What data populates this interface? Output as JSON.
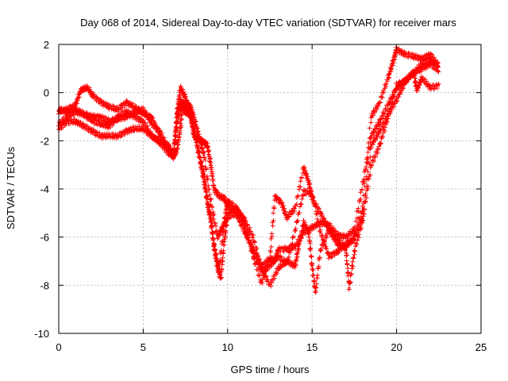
{
  "chart_data": {
    "type": "scatter",
    "title": "Day 068 of 2014, Sidereal Day-to-day VTEC variation (SDTVAR) for receiver mars",
    "xlabel": "GPS time / hours",
    "ylabel": "SDTVAR / TECUs",
    "xlim": [
      0,
      25
    ],
    "ylim": [
      -10,
      2
    ],
    "xticks": [
      0,
      5,
      10,
      15,
      20,
      25
    ],
    "yticks": [
      -10,
      -8,
      -6,
      -4,
      -2,
      0,
      2
    ],
    "xtick_labels": [
      "0",
      "5",
      "10",
      "15",
      "20",
      "25"
    ],
    "ytick_labels": [
      "-10",
      "-8",
      "-6",
      "-4",
      "-2",
      "0",
      "2"
    ],
    "grid": true,
    "legend": "none",
    "marker": "plus",
    "series_color": "#ff0000",
    "series": [
      {
        "points": [
          [
            0,
            -1.5
          ],
          [
            0.5,
            -1.2
          ],
          [
            1,
            -1.2
          ],
          [
            1.5,
            -1.4
          ],
          [
            2,
            -1.6
          ],
          [
            2.5,
            -1.8
          ],
          [
            3,
            -1.8
          ],
          [
            3.5,
            -1.8
          ],
          [
            4,
            -1.6
          ],
          [
            4.5,
            -1.5
          ],
          [
            5,
            -1.5
          ],
          [
            5.5,
            -1.8
          ],
          [
            6,
            -2.0
          ],
          [
            6.5,
            -2.2
          ],
          [
            6.8,
            -2.6
          ],
          [
            7.0,
            -2.4
          ],
          [
            7.2,
            -1.5
          ],
          [
            7.3,
            -0.6
          ],
          [
            7.5,
            -0.8
          ],
          [
            7.8,
            -0.9
          ],
          [
            8.0,
            -1.8
          ],
          [
            8.2,
            -1.9
          ],
          [
            8.5,
            -2.0
          ],
          [
            8.8,
            -2.2
          ],
          [
            9.0,
            -3.0
          ],
          [
            9.2,
            -4.0
          ],
          [
            9.5,
            -4.3
          ],
          [
            9.8,
            -4.4
          ],
          [
            10,
            -4.7
          ],
          [
            10.5,
            -5.0
          ],
          [
            11,
            -5.8
          ],
          [
            11.5,
            -6.5
          ],
          [
            12,
            -7.2
          ],
          [
            12.5,
            -6.9
          ],
          [
            12.8,
            -7.0
          ],
          [
            13,
            -6.5
          ],
          [
            13.5,
            -6.5
          ],
          [
            14,
            -6.4
          ],
          [
            14.5,
            -5.8
          ],
          [
            15,
            -5.6
          ],
          [
            15.5,
            -5.4
          ],
          [
            16,
            -5.5
          ],
          [
            16.5,
            -5.9
          ],
          [
            17,
            -6.0
          ],
          [
            17.5,
            -5.7
          ],
          [
            18,
            -3.8
          ],
          [
            18.5,
            -1.8
          ],
          [
            19,
            -1.2
          ],
          [
            19.5,
            -0.5
          ],
          [
            20,
            0.2
          ],
          [
            20.5,
            0.5
          ],
          [
            21,
            0.8
          ],
          [
            21.5,
            1.0
          ],
          [
            22,
            1.2
          ],
          [
            22.5,
            0.9
          ]
        ]
      },
      {
        "points": [
          [
            0,
            -0.7
          ],
          [
            0.5,
            -0.8
          ],
          [
            1,
            -0.7
          ],
          [
            1.5,
            -0.9
          ],
          [
            2,
            -1.0
          ],
          [
            2.5,
            -1.0
          ],
          [
            3,
            -1.2
          ],
          [
            3.5,
            -1.1
          ],
          [
            4,
            -1.0
          ],
          [
            4.5,
            -0.8
          ],
          [
            5,
            -0.7
          ],
          [
            5.5,
            -1.3
          ],
          [
            6,
            -1.6
          ],
          [
            6.5,
            -2.4
          ],
          [
            6.8,
            -2.7
          ],
          [
            7.0,
            -1.3
          ],
          [
            7.2,
            -0.3
          ],
          [
            7.4,
            -0.6
          ],
          [
            7.7,
            -0.7
          ],
          [
            8.0,
            -1.5
          ],
          [
            8.3,
            -2.5
          ],
          [
            8.6,
            -3.4
          ],
          [
            8.8,
            -4.6
          ],
          [
            9.0,
            -5.3
          ],
          [
            9.2,
            -6.4
          ],
          [
            9.4,
            -7.3
          ],
          [
            9.6,
            -7.7
          ],
          [
            9.8,
            -6.2
          ],
          [
            10,
            -5.0
          ],
          [
            10.5,
            -4.8
          ],
          [
            11,
            -5.3
          ],
          [
            11.5,
            -6.0
          ],
          [
            12,
            -7.3
          ],
          [
            12.5,
            -8.0
          ],
          [
            13,
            -7.3
          ],
          [
            13.5,
            -7.0
          ],
          [
            14,
            -7.2
          ],
          [
            14.2,
            -6.4
          ],
          [
            14.5,
            -5.4
          ],
          [
            14.8,
            -5.8
          ],
          [
            15,
            -7.2
          ],
          [
            15.2,
            -8.3
          ],
          [
            15.5,
            -6.5
          ],
          [
            16,
            -5.7
          ],
          [
            16.5,
            -6.1
          ],
          [
            17,
            -6.5
          ],
          [
            17.2,
            -8.1
          ],
          [
            17.5,
            -6.6
          ],
          [
            18,
            -5.3
          ],
          [
            18.5,
            -3.0
          ],
          [
            19,
            -2.2
          ],
          [
            19.5,
            -1.0
          ],
          [
            20,
            0.3
          ],
          [
            20.5,
            0.5
          ],
          [
            21,
            0.8
          ],
          [
            21.5,
            1.2
          ],
          [
            22,
            1.4
          ],
          [
            22.5,
            1.1
          ]
        ]
      },
      {
        "points": [
          [
            0,
            -0.8
          ],
          [
            0.5,
            -0.7
          ],
          [
            1,
            -0.5
          ],
          [
            1.3,
            0.1
          ],
          [
            1.7,
            0.2
          ],
          [
            2,
            -0.1
          ],
          [
            2.5,
            -0.4
          ],
          [
            3,
            -0.6
          ],
          [
            3.5,
            -0.7
          ],
          [
            4,
            -0.4
          ],
          [
            4.5,
            -0.6
          ],
          [
            5,
            -0.9
          ],
          [
            5.5,
            -1.0
          ],
          [
            6,
            -1.8
          ],
          [
            6.5,
            -2.4
          ],
          [
            6.8,
            -2.6
          ],
          [
            7.0,
            -0.8
          ],
          [
            7.2,
            0.2
          ],
          [
            7.5,
            -0.2
          ],
          [
            7.8,
            -0.9
          ],
          [
            8.0,
            -1.5
          ],
          [
            8.3,
            -2.6
          ],
          [
            8.6,
            -3.7
          ],
          [
            9.0,
            -5.2
          ],
          [
            9.2,
            -6.4
          ],
          [
            9.5,
            -7.3
          ],
          [
            9.8,
            -5.4
          ],
          [
            10,
            -4.5
          ],
          [
            10.5,
            -4.8
          ],
          [
            11,
            -5.3
          ],
          [
            11.5,
            -6.8
          ],
          [
            12,
            -7.9
          ],
          [
            12.5,
            -6.9
          ],
          [
            12.8,
            -4.3
          ],
          [
            13.2,
            -4.6
          ],
          [
            13.5,
            -5.2
          ],
          [
            14,
            -4.8
          ],
          [
            14.5,
            -3.1
          ],
          [
            14.8,
            -3.7
          ],
          [
            15,
            -4.4
          ],
          [
            15.5,
            -5.0
          ],
          [
            16,
            -5.7
          ],
          [
            16.5,
            -6.3
          ],
          [
            17,
            -6.4
          ],
          [
            17.5,
            -6.0
          ],
          [
            18,
            -4.8
          ],
          [
            18.5,
            -1.0
          ],
          [
            19,
            -0.4
          ],
          [
            19.5,
            0.6
          ],
          [
            19.8,
            1.3
          ],
          [
            20,
            1.8
          ],
          [
            20.5,
            1.6
          ],
          [
            21,
            1.5
          ],
          [
            21.5,
            1.4
          ],
          [
            22,
            1.6
          ],
          [
            22.5,
            1.1
          ]
        ]
      },
      {
        "points": [
          [
            0,
            -1.3
          ],
          [
            0.5,
            -1.0
          ],
          [
            1,
            -0.8
          ],
          [
            1.5,
            -0.9
          ],
          [
            2,
            -1.2
          ],
          [
            2.5,
            -1.3
          ],
          [
            3,
            -1.4
          ],
          [
            3.5,
            -1.0
          ],
          [
            4,
            -0.8
          ],
          [
            4.5,
            -1.0
          ],
          [
            5,
            -1.2
          ],
          [
            5.5,
            -1.8
          ],
          [
            6,
            -2.1
          ],
          [
            6.5,
            -2.5
          ],
          [
            6.8,
            -2.6
          ],
          [
            7.0,
            -1.0
          ],
          [
            7.2,
            -0.5
          ],
          [
            7.5,
            -0.4
          ],
          [
            7.8,
            -0.6
          ],
          [
            8.0,
            -1.0
          ],
          [
            8.3,
            -1.8
          ],
          [
            8.6,
            -2.6
          ],
          [
            9.0,
            -4.5
          ],
          [
            9.4,
            -6.0
          ],
          [
            9.7,
            -5.6
          ],
          [
            10,
            -5.2
          ],
          [
            10.5,
            -5.0
          ],
          [
            11,
            -5.6
          ],
          [
            11.5,
            -6.6
          ],
          [
            12,
            -7.4
          ],
          [
            12.5,
            -7.2
          ],
          [
            13,
            -6.8
          ],
          [
            13.5,
            -7.1
          ],
          [
            14,
            -5.7
          ],
          [
            14.5,
            -4.1
          ],
          [
            15,
            -4.2
          ],
          [
            15.5,
            -5.8
          ],
          [
            16,
            -6.8
          ],
          [
            16.5,
            -6.6
          ],
          [
            17,
            -6.3
          ],
          [
            17.5,
            -6.1
          ],
          [
            18,
            -5.2
          ],
          [
            18.5,
            -2.2
          ],
          [
            19,
            -1.6
          ],
          [
            19.5,
            -0.9
          ],
          [
            20,
            -0.3
          ],
          [
            20.5,
            0.4
          ],
          [
            21,
            0.9
          ],
          [
            21.2,
            0.1
          ],
          [
            21.5,
            0.6
          ],
          [
            22,
            0.2
          ],
          [
            22.5,
            0.3
          ]
        ]
      }
    ]
  }
}
